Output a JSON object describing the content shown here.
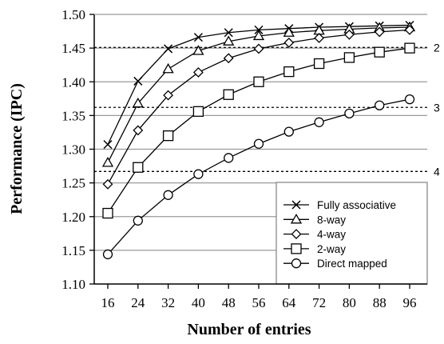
{
  "chart_data": {
    "type": "line",
    "xlabel": "Number of entries",
    "ylabel": "Performance (IPC)",
    "categories": [
      "16",
      "24",
      "32",
      "40",
      "48",
      "56",
      "64",
      "72",
      "80",
      "88",
      "96"
    ],
    "ylim": [
      1.1,
      1.5
    ],
    "yticks": [
      "1.10",
      "1.15",
      "1.20",
      "1.25",
      "1.30",
      "1.35",
      "1.40",
      "1.45",
      "1.50"
    ],
    "grid": true,
    "legend_position": "bottom-right",
    "series": [
      {
        "name": "Fully associative",
        "marker": "x",
        "values": [
          1.307,
          1.401,
          1.449,
          1.466,
          1.473,
          1.477,
          1.479,
          1.481,
          1.482,
          1.483,
          1.484
        ]
      },
      {
        "name": "8-way",
        "marker": "triangle",
        "values": [
          1.28,
          1.368,
          1.419,
          1.446,
          1.46,
          1.468,
          1.473,
          1.476,
          1.478,
          1.48,
          1.481
        ]
      },
      {
        "name": "4-way",
        "marker": "diamond",
        "values": [
          1.248,
          1.328,
          1.38,
          1.414,
          1.435,
          1.449,
          1.458,
          1.465,
          1.47,
          1.474,
          1.477
        ]
      },
      {
        "name": "2-way",
        "marker": "square",
        "values": [
          1.205,
          1.273,
          1.32,
          1.356,
          1.381,
          1.4,
          1.415,
          1.427,
          1.436,
          1.444,
          1.45
        ]
      },
      {
        "name": "Direct mapped",
        "marker": "circle",
        "values": [
          1.144,
          1.194,
          1.232,
          1.263,
          1.287,
          1.308,
          1.326,
          1.34,
          1.353,
          1.365,
          1.374
        ]
      }
    ],
    "reference_lines": [
      {
        "label": "2",
        "y": 1.451
      },
      {
        "label": "3",
        "y": 1.362
      },
      {
        "label": "4",
        "y": 1.267
      }
    ]
  }
}
